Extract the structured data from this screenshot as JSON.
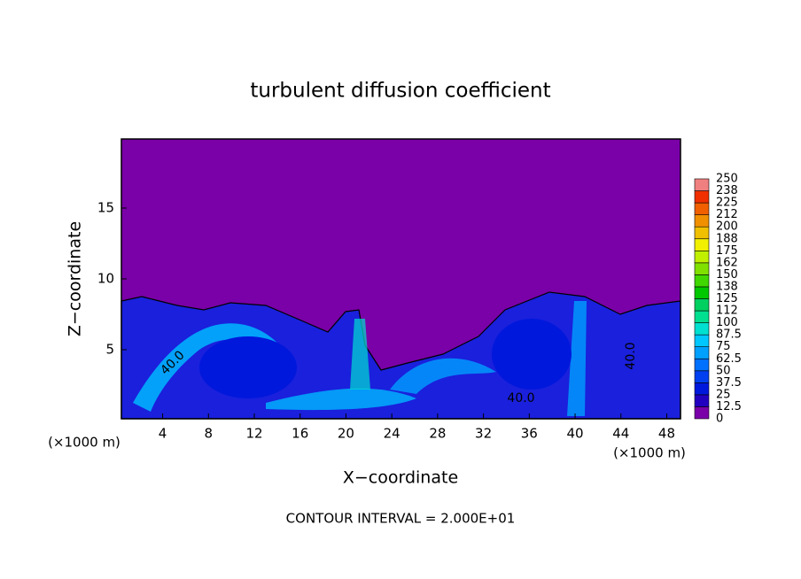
{
  "chart_data": {
    "type": "contour",
    "title": "turbulent diffusion coefficient",
    "x_label": "X−coordinate",
    "y_label": "Z−coordinate",
    "x_unit_left": "(×1000 m)",
    "x_unit_right": "(×1000 m)",
    "footer": "CONTOUR INTERVAL = 2.000E+01",
    "contour_labels": [
      "40.0",
      "40.0",
      "40.0"
    ],
    "xlim": [
      0.4,
      49.2
    ],
    "xticks": [
      4,
      8,
      12,
      16,
      20,
      24,
      28,
      32,
      36,
      40,
      44,
      48
    ],
    "ylim": [
      0.125,
      19.875
    ],
    "yticks": [
      5,
      10,
      15
    ],
    "colorbar": {
      "levels": [
        0,
        12.5,
        25,
        37.5,
        50,
        62.5,
        75,
        87.5,
        100,
        {
          "value": 112.5,
          "label": "112"
        },
        125,
        {
          "value": 137.5,
          "label": "138"
        },
        150,
        {
          "value": 162.5,
          "label": "162"
        },
        175,
        {
          "value": 187.5,
          "label": "188"
        },
        200,
        {
          "value": 212.5,
          "label": "212"
        },
        225,
        {
          "value": 237.5,
          "label": "238"
        },
        250
      ],
      "colors": [
        "#7a00a8",
        "#2200c0",
        "#0018dc",
        "#0040f0",
        "#0070ff",
        "#00a0ff",
        "#00c8ff",
        "#00e0d0",
        "#00e090",
        "#00d060",
        "#00c800",
        "#40d800",
        "#80e000",
        "#c0f000",
        "#f0f000",
        "#f0c000",
        "#f09000",
        "#f06000",
        "#f03000",
        "#f08080"
      ]
    }
  }
}
